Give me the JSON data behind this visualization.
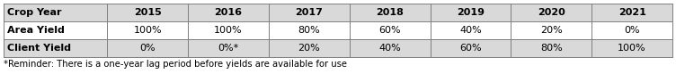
{
  "col_labels": [
    "Crop Year",
    "2015",
    "2016",
    "2017",
    "2018",
    "2019",
    "2020",
    "2021"
  ],
  "row_labels": [
    "Area Yield",
    "Client Yield"
  ],
  "area_yield": [
    "100%",
    "100%",
    "80%",
    "60%",
    "40%",
    "20%",
    "0%"
  ],
  "client_yield": [
    "0%",
    "0%*",
    "20%",
    "40%",
    "60%",
    "80%",
    "100%"
  ],
  "footnote": "*Reminder: There is a one-year lag period before yields are available for use",
  "header_bg": "#d9d9d9",
  "row1_bg": "#ffffff",
  "row2_bg": "#d9d9d9",
  "border_color": "#7f7f7f",
  "cell_fontsize": 8.0,
  "footnote_fontsize": 7.2,
  "fig_width": 7.52,
  "fig_height": 0.92
}
